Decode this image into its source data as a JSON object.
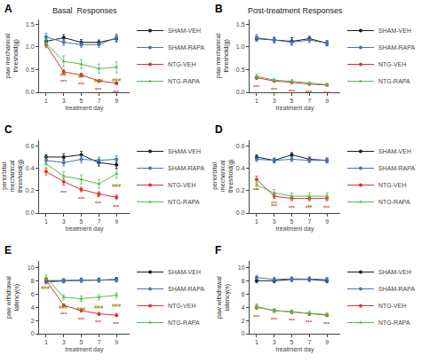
{
  "chart_data": [
    {
      "type": "line",
      "title": "Basal  Responses",
      "x_label": "treatment day",
      "y_label": "paw mechanical threshold(g)",
      "x": [
        1,
        3,
        5,
        7,
        9
      ],
      "xlim": [
        0.2,
        10.5
      ],
      "xticks": [
        1,
        3,
        5,
        7,
        9
      ],
      "ylim": [
        0.0,
        1.6
      ],
      "yticks": [
        {
          "value": 0.0,
          "label": "0.0"
        },
        0.5,
        {
          "value": 1.0,
          "label": "1.0"
        },
        1.5
      ],
      "grid": false,
      "legend": "right",
      "series": [
        {
          "name": "SHAM-VEH",
          "color": "#1a1a1a",
          "marker": "circle",
          "values": [
            1.12,
            1.2,
            1.1,
            1.1,
            1.18
          ],
          "errors": [
            0.05,
            0.07,
            0.06,
            0.05,
            0.07
          ]
        },
        {
          "name": "SHAM-RAPA",
          "color": "#4472c4",
          "marker": "circle",
          "values": [
            1.22,
            1.1,
            1.05,
            1.05,
            1.2
          ],
          "errors": [
            0.08,
            0.07,
            0.06,
            0.06,
            0.08
          ]
        },
        {
          "name": "NTG-VEH",
          "color": "#e03030",
          "marker": "circle",
          "values": [
            1.05,
            0.45,
            0.38,
            0.25,
            0.2
          ],
          "errors": [
            0.06,
            0.05,
            0.04,
            0.03,
            0.03
          ]
        },
        {
          "name": "NTG-RAPA",
          "color": "#50c050",
          "marker": "triangle",
          "values": [
            1.08,
            0.68,
            0.62,
            0.52,
            0.55
          ],
          "errors": [
            0.1,
            0.12,
            0.1,
            0.1,
            0.12
          ]
        }
      ],
      "annotations": [
        {
          "text": "A"
        },
        {
          "text": "***",
          "x": 3,
          "series": "NTG-VEH",
          "color": "#e03030"
        },
        {
          "text": "***",
          "x": 5,
          "series": "NTG-VEH",
          "color": "#e03030"
        },
        {
          "text": "***",
          "x": 7,
          "series": "NTG-VEH",
          "color": "#e03030"
        },
        {
          "text": "***",
          "x": 9,
          "series": "NTG-VEH",
          "color": "#e03030"
        },
        {
          "text": "##",
          "x": 3,
          "series": "NTG-RAPA",
          "color": "#888800"
        },
        {
          "text": "##",
          "x": 5,
          "series": "NTG-RAPA",
          "color": "#888800"
        },
        {
          "text": "###",
          "x": 7,
          "series": "NTG-RAPA",
          "color": "#888800"
        },
        {
          "text": "###",
          "x": 9,
          "series": "NTG-RAPA",
          "color": "#888800"
        }
      ]
    },
    {
      "type": "line",
      "title": "Post-treatment Responses",
      "x_label": "treatment day",
      "y_label": "paw mechanical threshold(g)",
      "x": [
        1,
        3,
        5,
        7,
        9
      ],
      "xlim": [
        0.2,
        10.5
      ],
      "xticks": [
        1,
        3,
        5,
        7,
        9
      ],
      "ylim": [
        0.0,
        1.6
      ],
      "yticks": [
        {
          "value": 0.0,
          "label": "0.0"
        },
        0.5,
        {
          "value": 1.0,
          "label": "1.0"
        },
        1.5
      ],
      "grid": false,
      "legend": "right",
      "series": [
        {
          "name": "SHAM-VEH",
          "color": "#1a1a1a",
          "marker": "circle",
          "values": [
            1.18,
            1.15,
            1.12,
            1.18,
            1.08
          ],
          "errors": [
            0.05,
            0.06,
            0.08,
            0.05,
            0.05
          ]
        },
        {
          "name": "SHAM-RAPA",
          "color": "#4472c4",
          "marker": "circle",
          "values": [
            1.2,
            1.15,
            1.1,
            1.15,
            1.08
          ],
          "errors": [
            0.07,
            0.06,
            0.06,
            0.06,
            0.06
          ]
        },
        {
          "name": "NTG-VEH",
          "color": "#e03030",
          "marker": "circle",
          "values": [
            0.32,
            0.25,
            0.22,
            0.18,
            0.16
          ],
          "errors": [
            0.04,
            0.03,
            0.03,
            0.02,
            0.02
          ]
        },
        {
          "name": "NTG-RAPA",
          "color": "#50c050",
          "marker": "triangle",
          "values": [
            0.35,
            0.27,
            0.24,
            0.2,
            0.17
          ],
          "errors": [
            0.05,
            0.04,
            0.04,
            0.03,
            0.03
          ]
        }
      ],
      "annotations": [
        {
          "text": "B"
        },
        {
          "text": "***",
          "x": 1,
          "series": "NTG-VEH",
          "color": "#e03030"
        },
        {
          "text": "***",
          "x": 3,
          "series": "NTG-VEH",
          "color": "#e03030"
        },
        {
          "text": "***",
          "x": 5,
          "series": "NTG-VEH",
          "color": "#e03030"
        },
        {
          "text": "***",
          "x": 7,
          "series": "NTG-VEH",
          "color": "#e03030"
        },
        {
          "text": "***",
          "x": 9,
          "series": "NTG-VEH",
          "color": "#e03030"
        }
      ]
    },
    {
      "type": "line",
      "x_label": "treatment day",
      "y_label": "periorbital mechanical threshold(g)",
      "x": [
        1,
        3,
        5,
        7,
        9
      ],
      "xlim": [
        0.2,
        10.5
      ],
      "xticks": [
        1,
        3,
        5,
        7,
        9
      ],
      "ylim": [
        0.0,
        0.65
      ],
      "yticks": [
        {
          "value": 0.0,
          "label": "0.0"
        },
        0.2,
        0.4,
        0.6
      ],
      "grid": false,
      "legend": "right",
      "series": [
        {
          "name": "SHAM-VEH",
          "color": "#1a1a1a",
          "marker": "circle",
          "values": [
            0.5,
            0.5,
            0.52,
            0.45,
            0.43
          ],
          "errors": [
            0.02,
            0.03,
            0.03,
            0.03,
            0.03
          ]
        },
        {
          "name": "SHAM-RAPA",
          "color": "#4472c4",
          "marker": "circle",
          "values": [
            0.47,
            0.45,
            0.48,
            0.47,
            0.48
          ],
          "errors": [
            0.03,
            0.03,
            0.03,
            0.03,
            0.03
          ]
        },
        {
          "name": "NTG-VEH",
          "color": "#e03030",
          "marker": "circle",
          "values": [
            0.37,
            0.28,
            0.21,
            0.17,
            0.14
          ],
          "errors": [
            0.03,
            0.03,
            0.02,
            0.02,
            0.02
          ]
        },
        {
          "name": "NTG-RAPA",
          "color": "#50c050",
          "marker": "triangle",
          "values": [
            0.44,
            0.33,
            0.3,
            0.26,
            0.35
          ],
          "errors": [
            0.04,
            0.04,
            0.04,
            0.04,
            0.04
          ]
        }
      ],
      "annotations": [
        {
          "text": "C"
        },
        {
          "text": "***",
          "x": 3,
          "series": "NTG-VEH",
          "color": "#e03030"
        },
        {
          "text": "***",
          "x": 5,
          "series": "NTG-VEH",
          "color": "#e03030"
        },
        {
          "text": "***",
          "x": 7,
          "series": "NTG-VEH",
          "color": "#e03030"
        },
        {
          "text": "***",
          "x": 9,
          "series": "NTG-VEH",
          "color": "#e03030"
        },
        {
          "text": "#",
          "x": 7,
          "series": "NTG-RAPA",
          "color": "#888800"
        },
        {
          "text": "###",
          "x": 9,
          "series": "NTG-RAPA",
          "color": "#888800"
        }
      ]
    },
    {
      "type": "line",
      "x_label": "treatment day",
      "y_label": "periorbital mechanical threshold(g)",
      "x": [
        1,
        3,
        5,
        7,
        9
      ],
      "xlim": [
        0.2,
        10.5
      ],
      "xticks": [
        1,
        3,
        5,
        7,
        9
      ],
      "ylim": [
        0.0,
        0.65
      ],
      "yticks": [
        {
          "value": 0.0,
          "label": "0.0"
        },
        0.2,
        0.4,
        0.6
      ],
      "grid": false,
      "legend": "right",
      "series": [
        {
          "name": "SHAM-VEH",
          "color": "#1a1a1a",
          "marker": "circle",
          "values": [
            0.5,
            0.47,
            0.52,
            0.48,
            0.47
          ],
          "errors": [
            0.02,
            0.02,
            0.02,
            0.02,
            0.02
          ]
        },
        {
          "name": "SHAM-RAPA",
          "color": "#4472c4",
          "marker": "circle",
          "values": [
            0.48,
            0.47,
            0.48,
            0.47,
            0.47
          ],
          "errors": [
            0.02,
            0.02,
            0.02,
            0.02,
            0.02
          ]
        },
        {
          "name": "NTG-VEH",
          "color": "#e03030",
          "marker": "circle",
          "values": [
            0.3,
            0.15,
            0.13,
            0.13,
            0.13
          ],
          "errors": [
            0.03,
            0.02,
            0.02,
            0.02,
            0.02
          ]
        },
        {
          "name": "NTG-RAPA",
          "color": "#50c050",
          "marker": "triangle",
          "values": [
            0.25,
            0.18,
            0.15,
            0.15,
            0.15
          ],
          "errors": [
            0.04,
            0.03,
            0.03,
            0.03,
            0.03
          ]
        }
      ],
      "annotations": [
        {
          "text": "D"
        },
        {
          "text": "***",
          "x": 1,
          "series": "NTG-VEH",
          "color": "#e03030"
        },
        {
          "text": "***",
          "x": 3,
          "series": "NTG-VEH",
          "color": "#e03030"
        },
        {
          "text": "***",
          "x": 5,
          "series": "NTG-VEH",
          "color": "#e03030"
        },
        {
          "text": "***",
          "x": 7,
          "series": "NTG-VEH",
          "color": "#e03030"
        },
        {
          "text": "***",
          "x": 9,
          "series": "NTG-VEH",
          "color": "#e03030"
        },
        {
          "text": "***",
          "x": 3,
          "series": "NTG-RAPA",
          "color": "#888800"
        },
        {
          "text": "**",
          "x": 7,
          "series": "NTG-RAPA",
          "color": "#888800"
        }
      ]
    },
    {
      "type": "line",
      "x_label": "treatment day",
      "y_label": "paw withdrawal latency(s)",
      "x": [
        1,
        3,
        5,
        7,
        9
      ],
      "xlim": [
        0.2,
        10.5
      ],
      "xticks": [
        1,
        3,
        5,
        7,
        9
      ],
      "ylim": [
        0,
        11
      ],
      "yticks": [
        0,
        2,
        4,
        6,
        8,
        10
      ],
      "grid": false,
      "legend": "right",
      "series": [
        {
          "name": "SHAM-VEH",
          "color": "#1a1a1a",
          "marker": "circle",
          "values": [
            8.0,
            8.0,
            8.1,
            8.1,
            8.2
          ],
          "errors": [
            0.3,
            0.3,
            0.3,
            0.3,
            0.3
          ]
        },
        {
          "name": "SHAM-RAPA",
          "color": "#4472c4",
          "marker": "circle",
          "values": [
            7.8,
            8.0,
            8.1,
            8.1,
            8.1
          ],
          "errors": [
            0.3,
            0.3,
            0.3,
            0.3,
            0.3
          ]
        },
        {
          "name": "NTG-VEH",
          "color": "#e03030",
          "marker": "circle",
          "values": [
            8.1,
            4.3,
            3.5,
            3.0,
            2.8
          ],
          "errors": [
            0.3,
            0.2,
            0.2,
            0.2,
            0.2
          ]
        },
        {
          "name": "NTG-RAPA",
          "color": "#50c050",
          "marker": "triangle",
          "values": [
            8.5,
            5.5,
            5.3,
            5.5,
            5.8
          ],
          "errors": [
            0.4,
            0.4,
            0.4,
            0.4,
            0.4
          ]
        }
      ],
      "annotations": [
        {
          "text": "E"
        },
        {
          "text": "***",
          "x": 3,
          "series": "NTG-VEH",
          "color": "#e03030"
        },
        {
          "text": "***",
          "x": 5,
          "series": "NTG-VEH",
          "color": "#e03030"
        },
        {
          "text": "***",
          "x": 7,
          "series": "NTG-VEH",
          "color": "#e03030"
        },
        {
          "text": "***",
          "x": 9,
          "series": "NTG-VEH",
          "color": "#e03030"
        },
        {
          "text": "###",
          "x": 1,
          "series": "NTG-RAPA",
          "color": "#888800"
        },
        {
          "text": "###",
          "x": 3,
          "series": "NTG-RAPA",
          "color": "#888800"
        },
        {
          "text": "###",
          "x": 5,
          "series": "NTG-RAPA",
          "color": "#888800"
        },
        {
          "text": "###",
          "x": 7,
          "series": "NTG-RAPA",
          "color": "#888800"
        },
        {
          "text": "###",
          "x": 9,
          "series": "NTG-RAPA",
          "color": "#888800"
        }
      ]
    },
    {
      "type": "line",
      "x_label": "treatment day",
      "y_label": "paw withdrawal latency(s)",
      "x": [
        1,
        3,
        5,
        7,
        9
      ],
      "xlim": [
        0.2,
        10.5
      ],
      "xticks": [
        1,
        3,
        5,
        7,
        9
      ],
      "ylim": [
        0,
        11
      ],
      "yticks": [
        0,
        2,
        4,
        6,
        8,
        10
      ],
      "grid": false,
      "legend": "right",
      "series": [
        {
          "name": "SHAM-VEH",
          "color": "#1a1a1a",
          "marker": "circle",
          "values": [
            8.0,
            8.0,
            8.2,
            8.2,
            8.0
          ],
          "errors": [
            0.3,
            0.3,
            0.3,
            0.3,
            0.3
          ]
        },
        {
          "name": "SHAM-RAPA",
          "color": "#4472c4",
          "marker": "circle",
          "values": [
            8.5,
            8.2,
            8.3,
            8.3,
            8.2
          ],
          "errors": [
            0.3,
            0.3,
            0.3,
            0.3,
            0.3
          ]
        },
        {
          "name": "NTG-VEH",
          "color": "#e03030",
          "marker": "circle",
          "values": [
            4.0,
            3.5,
            3.3,
            3.0,
            2.8
          ],
          "errors": [
            0.3,
            0.2,
            0.2,
            0.2,
            0.2
          ]
        },
        {
          "name": "NTG-RAPA",
          "color": "#50c050",
          "marker": "triangle",
          "values": [
            4.1,
            3.5,
            3.3,
            3.1,
            2.9
          ],
          "errors": [
            0.4,
            0.3,
            0.3,
            0.3,
            0.3
          ]
        }
      ],
      "annotations": [
        {
          "text": "F"
        },
        {
          "text": "***",
          "x": 1,
          "series": "NTG-VEH",
          "color": "#e03030"
        },
        {
          "text": "***",
          "x": 3,
          "series": "NTG-VEH",
          "color": "#e03030"
        },
        {
          "text": "***",
          "x": 5,
          "series": "NTG-VEH",
          "color": "#e03030"
        },
        {
          "text": "***",
          "x": 7,
          "series": "NTG-VEH",
          "color": "#e03030"
        },
        {
          "text": "***",
          "x": 9,
          "series": "NTG-VEH",
          "color": "#e03030"
        }
      ]
    }
  ]
}
